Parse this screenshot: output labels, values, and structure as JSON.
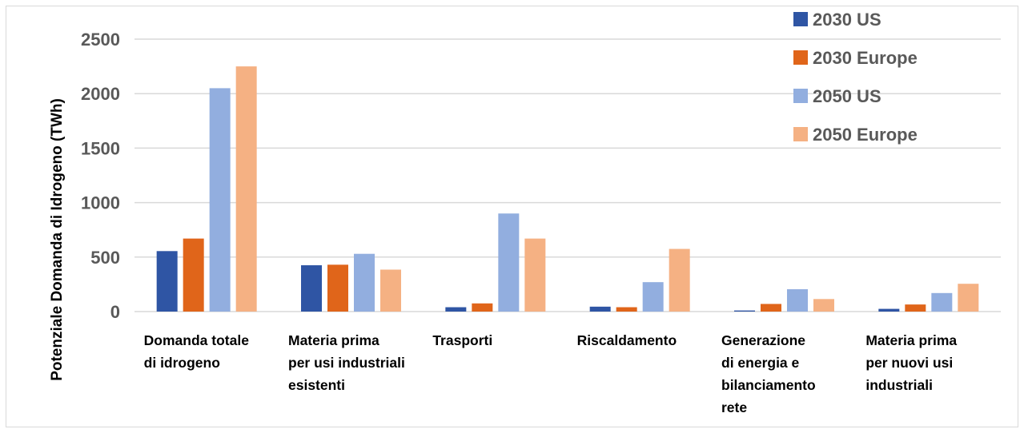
{
  "chart_data": {
    "type": "bar",
    "title": "",
    "ylabel": "Potenziale Domanda di Idrogeno (TWh)",
    "xlabel": "",
    "ylim": [
      0,
      2500
    ],
    "yticks": [
      0,
      500,
      1000,
      1500,
      2000,
      2500
    ],
    "grid": true,
    "legend_position": "top-right",
    "categories": [
      [
        "Domanda totale",
        "di idrogeno"
      ],
      [
        "Materia prima",
        "per usi industriali",
        "esistenti"
      ],
      [
        "Trasporti"
      ],
      [
        "Riscaldamento"
      ],
      [
        "Generazione",
        "di energia e",
        "bilanciamento",
        "rete"
      ],
      [
        "Materia prima",
        "per nuovi usi",
        "industriali"
      ]
    ],
    "series": [
      {
        "name": "2030 US",
        "color": "#2f55a4",
        "values": [
          555,
          425,
          40,
          45,
          10,
          25
        ]
      },
      {
        "name": "2030 Europe",
        "color": "#e0651a",
        "values": [
          670,
          430,
          75,
          40,
          70,
          65
        ]
      },
      {
        "name": "2050 US",
        "color": "#92aedf",
        "values": [
          2050,
          530,
          900,
          270,
          205,
          170
        ]
      },
      {
        "name": "2050 Europe",
        "color": "#f5b183",
        "values": [
          2250,
          385,
          670,
          575,
          115,
          255
        ]
      }
    ]
  }
}
